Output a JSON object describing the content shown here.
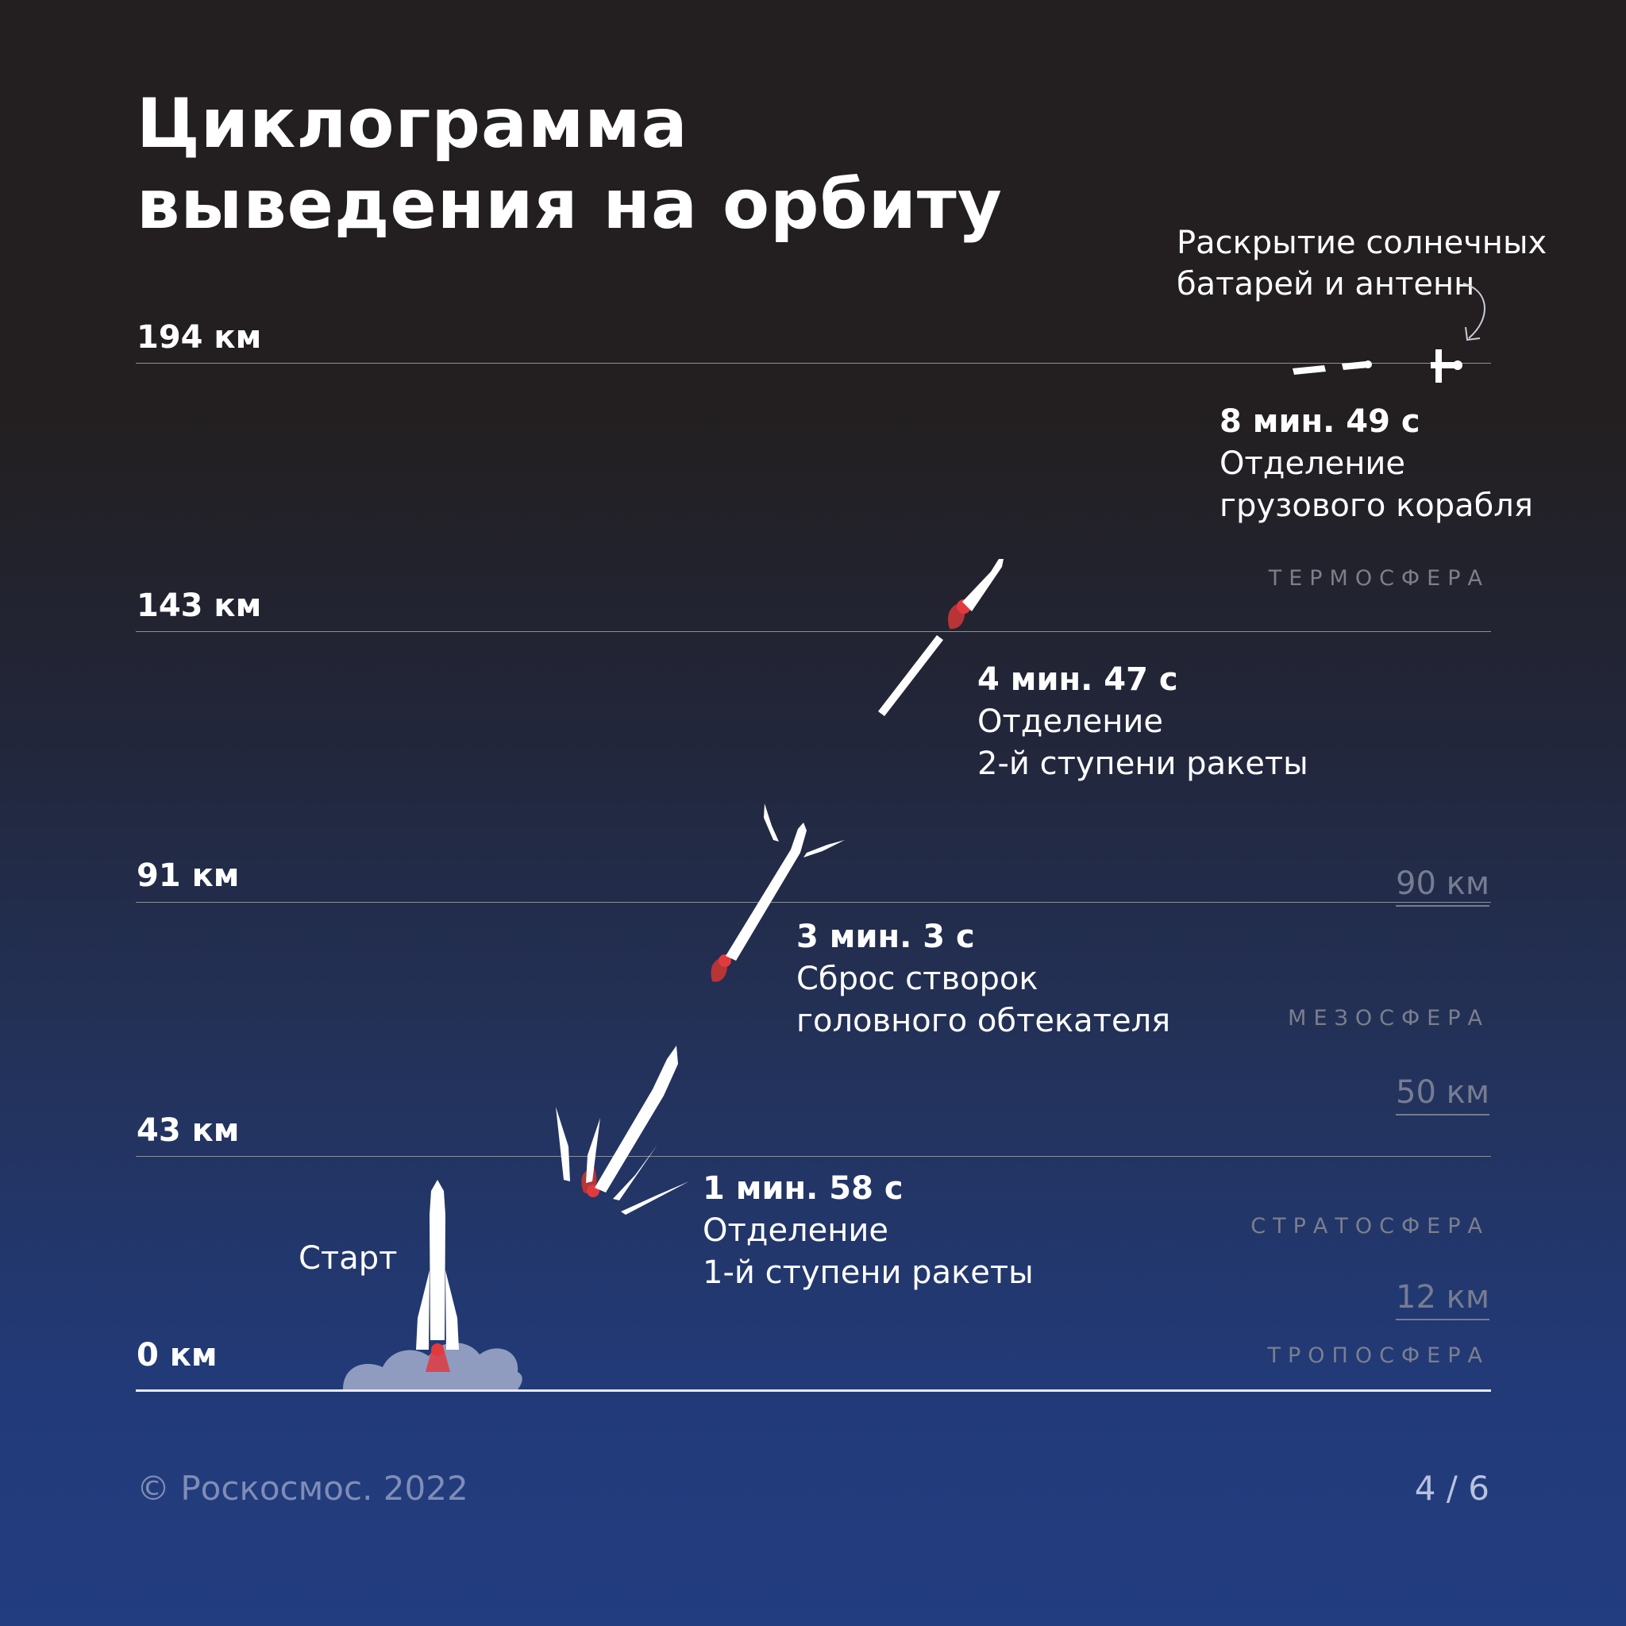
{
  "title": {
    "line1": "Циклограмма",
    "line2": "выведения на орбиту"
  },
  "altitudes": [
    {
      "label": "194 км"
    },
    {
      "label": "143 км"
    },
    {
      "label": "91 км"
    },
    {
      "label": "43 км"
    },
    {
      "label": "0 км"
    }
  ],
  "events": [
    {
      "time": "8 мин. 49 с",
      "line1": "Отделение",
      "line2": "грузового корабля"
    },
    {
      "time": "4 мин. 47 с",
      "line1": "Отделение",
      "line2": "2-й ступени ракеты"
    },
    {
      "time": "3 мин. 3 с",
      "line1": "Сброс створок",
      "line2": "головного обтекателя"
    },
    {
      "time": "1 мин. 58 с",
      "line1": "Отделение",
      "line2": "1-й ступени ракеты"
    }
  ],
  "start_label": "Старт",
  "annotation": {
    "line1": "Раскрытие солнечных",
    "line2": "батарей и антенн"
  },
  "layers": [
    "ТЕРМОСФЕРА",
    "МЕЗОСФЕРА",
    "СТРАТОСФЕРА",
    "ТРОПОСФЕРА"
  ],
  "boundaries": [
    "90 км",
    "50 км",
    "12 км"
  ],
  "footer": {
    "copyright": "© Роскосмос. 2022",
    "page": "4 / 6"
  },
  "colors": {
    "flame": "#e03a3f",
    "smoke": "#8f9cbf",
    "rocket": "#ffffff"
  }
}
